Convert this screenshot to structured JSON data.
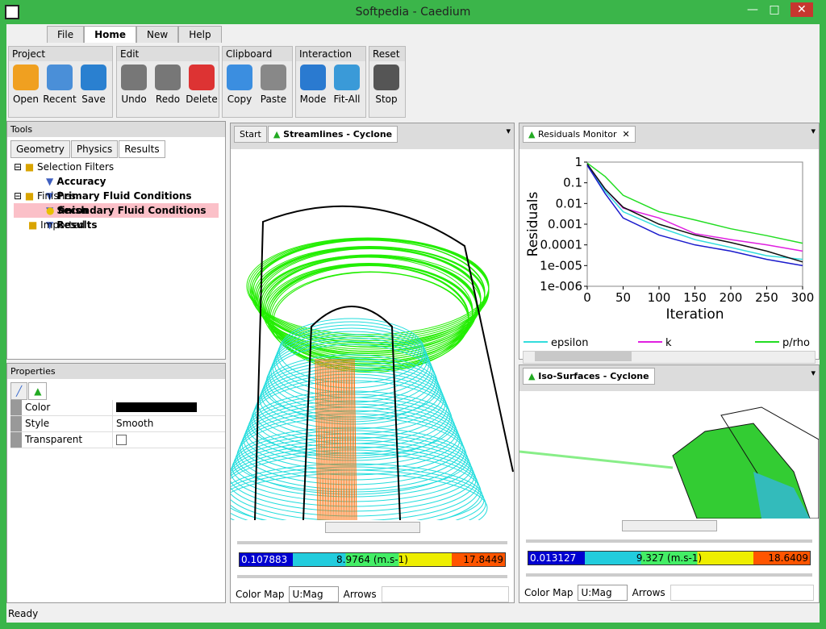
{
  "window": {
    "title": "Softpedia - Caedium"
  },
  "menu_tabs": [
    "File",
    "Home",
    "New",
    "Help"
  ],
  "ribbon": [
    {
      "title": "Project",
      "buttons": [
        "Open",
        "Recent",
        "Save"
      ]
    },
    {
      "title": "Edit",
      "buttons": [
        "Undo",
        "Redo",
        "Delete"
      ]
    },
    {
      "title": "Clipboard",
      "buttons": [
        "Copy",
        "Paste"
      ]
    },
    {
      "title": "Interaction",
      "buttons": [
        "Mode",
        "Fit-All"
      ]
    },
    {
      "title": "Reset",
      "buttons": [
        "Stop"
      ]
    }
  ],
  "tools": {
    "title": "Tools",
    "tabs": [
      "Geometry",
      "Physics",
      "Results"
    ],
    "tree": {
      "selection_filters": "Selection Filters",
      "filters": [
        "Accuracy",
        "Primary Fluid Conditions",
        "Secondary Fluid Conditions",
        "Results"
      ],
      "finishes": "Finishes",
      "finish": "finish",
      "imported": "Imported"
    }
  },
  "properties": {
    "title": "Properties",
    "rows": [
      {
        "label": "Color"
      },
      {
        "label": "Style",
        "value": "Smooth"
      },
      {
        "label": "Transparent"
      }
    ]
  },
  "viewports": [
    {
      "tabs": [
        "Start",
        "Streamlines - Cyclone"
      ],
      "colorbar": [
        "0.107883",
        "8.9764 (m.s-1)",
        "17.8449"
      ],
      "color_map_label": "Color Map",
      "color_map": "U:Mag",
      "arrows": "Arrows"
    },
    {
      "tabs": [
        "Iso-Surfaces - Cyclone"
      ],
      "colorbar": [
        "0.013127",
        "9.327 (m.s-1)",
        "18.6409"
      ],
      "color_map_label": "Color Map",
      "color_map": "U:Mag",
      "arrows": "Arrows"
    }
  ],
  "residuals_tab": "Residuals Monitor",
  "chart_data": {
    "type": "line",
    "log_y": true,
    "xlabel": "Iteration",
    "ylabel": "Residuals",
    "x": [
      0,
      25,
      50,
      100,
      150,
      200,
      250,
      300
    ],
    "xlim": [
      0,
      300
    ],
    "xticks": [
      0,
      50,
      100,
      150,
      200,
      250,
      300
    ],
    "ylim": [
      1e-06,
      1
    ],
    "yticks": [
      1,
      0.1,
      0.01,
      0.001,
      0.0001,
      {
        "value": 1e-05,
        "label": "1e-005"
      },
      {
        "value": 1e-06,
        "label": "1e-006"
      }
    ],
    "series": [
      {
        "name": "epsilon",
        "color": "#33dddd",
        "values": [
          0.8,
          0.04,
          0.004,
          0.0007,
          0.00018,
          7.5e-05,
          3e-05,
          2e-05
        ]
      },
      {
        "name": "k",
        "color": "#e020e0",
        "values": [
          0.8,
          0.05,
          0.006,
          0.002,
          0.00035,
          0.00018,
          0.0001,
          5e-05
        ]
      },
      {
        "name": "p/rho",
        "color": "#22dd22",
        "values": [
          0.9,
          0.2,
          0.025,
          0.004,
          0.0016,
          0.0006,
          0.00028,
          0.00012
        ]
      },
      {
        "color": "#111111",
        "values": [
          0.8,
          0.05,
          0.0066,
          0.001,
          0.0003,
          0.00013,
          5e-05,
          1.5e-05
        ]
      },
      {
        "color": "#1a1acc",
        "values": [
          0.7,
          0.03,
          0.002,
          0.0003,
          0.0001,
          5e-05,
          2e-05,
          1e-05
        ]
      }
    ]
  },
  "status": "Ready"
}
